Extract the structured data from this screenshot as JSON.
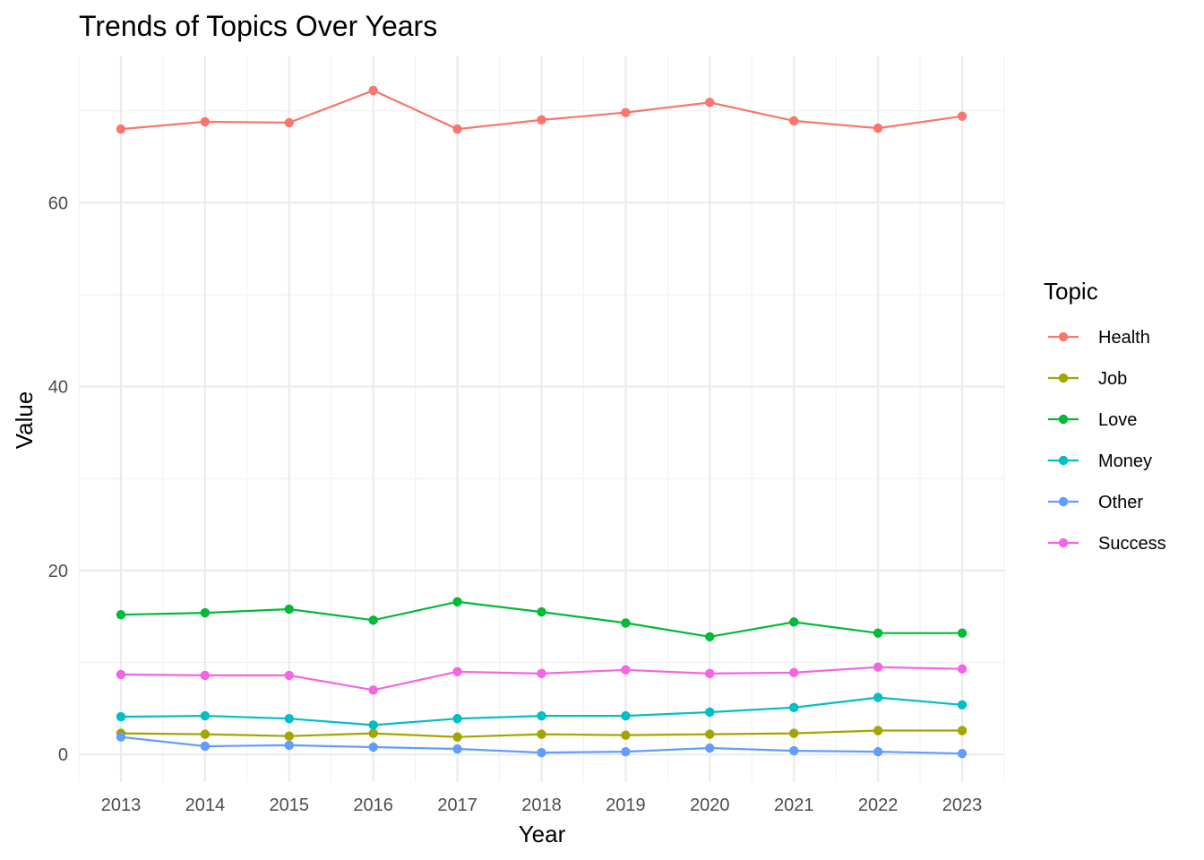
{
  "chart_data": {
    "type": "line",
    "title": "Trends of Topics Over Years",
    "xlabel": "Year",
    "ylabel": "Value",
    "x": [
      2013,
      2014,
      2015,
      2016,
      2017,
      2018,
      2019,
      2020,
      2021,
      2022,
      2023
    ],
    "ylim": [
      -3,
      76
    ],
    "yticks": [
      0,
      20,
      40,
      60
    ],
    "grid": true,
    "legend": {
      "title": "Topic",
      "position": "right"
    },
    "series": [
      {
        "name": "Health",
        "color": "#F8766D",
        "values": [
          68.0,
          68.8,
          68.7,
          72.2,
          68.0,
          69.0,
          69.8,
          70.9,
          68.9,
          68.1,
          69.4
        ]
      },
      {
        "name": "Job",
        "color": "#A3A500",
        "values": [
          2.3,
          2.2,
          2.0,
          2.3,
          1.9,
          2.2,
          2.1,
          2.2,
          2.3,
          2.6,
          2.6
        ]
      },
      {
        "name": "Love",
        "color": "#00BA38",
        "values": [
          15.2,
          15.4,
          15.8,
          14.6,
          16.6,
          15.5,
          14.3,
          12.8,
          14.4,
          13.2,
          13.2
        ]
      },
      {
        "name": "Money",
        "color": "#00BFC4",
        "values": [
          4.1,
          4.2,
          3.9,
          3.2,
          3.9,
          4.2,
          4.2,
          4.6,
          5.1,
          6.2,
          5.4
        ]
      },
      {
        "name": "Other",
        "color": "#619CFF",
        "values": [
          1.9,
          0.9,
          1.0,
          0.8,
          0.6,
          0.2,
          0.3,
          0.7,
          0.4,
          0.3,
          0.1
        ]
      },
      {
        "name": "Success",
        "color": "#F564E3",
        "values": [
          8.7,
          8.6,
          8.6,
          7.0,
          9.0,
          8.8,
          9.2,
          8.8,
          8.9,
          9.5,
          9.3
        ]
      }
    ]
  }
}
